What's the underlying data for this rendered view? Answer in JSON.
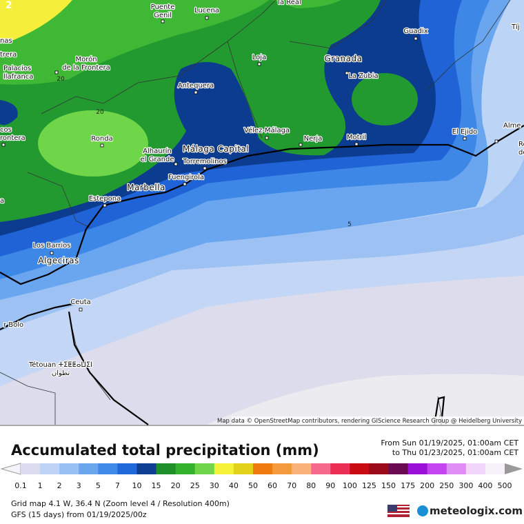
{
  "map": {
    "corner_label": "2",
    "places": [
      {
        "lines": [
          "la Real"
        ]
      },
      {
        "lines": [
          "Puente",
          "Genil"
        ]
      },
      {
        "lines": [
          "Lucena"
        ]
      },
      {
        "lines": [
          "nas"
        ]
      },
      {
        "lines": [
          "trera"
        ]
      },
      {
        "lines": [
          "Morón",
          "de la Frontera"
        ]
      },
      {
        "lines": [
          "Palacios",
          "llafranca"
        ]
      },
      {
        "lines": [
          "Loja"
        ]
      },
      {
        "lines": [
          "Granada"
        ]
      },
      {
        "lines": [
          "La Zubia"
        ]
      },
      {
        "lines": [
          "Guadix"
        ]
      },
      {
        "lines": [
          "Tíj"
        ]
      },
      {
        "lines": [
          "Antequera"
        ]
      },
      {
        "lines": [
          "cos",
          "rontera"
        ]
      },
      {
        "lines": [
          "Ronda"
        ]
      },
      {
        "lines": [
          "Vélez-Málaga"
        ]
      },
      {
        "lines": [
          "Nerja"
        ]
      },
      {
        "lines": [
          "Motril"
        ]
      },
      {
        "lines": [
          "El Ejido"
        ]
      },
      {
        "lines": [
          "Alme"
        ]
      },
      {
        "lines": [
          "Roque",
          "de Ma"
        ]
      },
      {
        "lines": [
          "Málaga Capital"
        ]
      },
      {
        "lines": [
          "Alhaurín",
          "el Grande"
        ]
      },
      {
        "lines": [
          "Torremolinos"
        ]
      },
      {
        "lines": [
          "Fuengirola"
        ]
      },
      {
        "lines": [
          "Marbella"
        ]
      },
      {
        "lines": [
          "Estepona"
        ]
      },
      {
        "lines": [
          "a"
        ]
      },
      {
        "lines": [
          "Los Barrios"
        ]
      },
      {
        "lines": [
          "Algeciras"
        ]
      },
      {
        "lines": [
          "Ceuta"
        ]
      },
      {
        "lines": [
          "r Bolo"
        ]
      },
      {
        "lines": [
          "Tétouan ⵜⵉⵟⵟⴰⵡⵉⵏ",
          "تطوان"
        ]
      }
    ],
    "contour_labels": [
      "20",
      "20",
      "5"
    ],
    "attribution": "Map data © OpenStreetMap contributors, rendering GIScience Research Group @ Heidelberg University"
  },
  "legend": {
    "title": "Accumulated total precipitation (mm)",
    "from": "From Sun 01/19/2025, 01:00am CET",
    "to": "to Thu 01/23/2025, 01:00am CET",
    "ticks": [
      0.1,
      1,
      2,
      3,
      5,
      7,
      10,
      15,
      20,
      25,
      30,
      40,
      50,
      60,
      70,
      80,
      90,
      100,
      125,
      150,
      175,
      200,
      250,
      300,
      400,
      500
    ],
    "colors": [
      "#dcdcf0",
      "#bed4f7",
      "#98c0f4",
      "#6aa5ee",
      "#3f89e8",
      "#1f6adb",
      "#0e3f91",
      "#1f8f2a",
      "#34b22d",
      "#6fd64a",
      "#f5f23a",
      "#e3d21a",
      "#f07a10",
      "#f39a3c",
      "#f8b27a",
      "#f56a8c",
      "#ec2f55",
      "#c80b12",
      "#9a0a18",
      "#6a0a50",
      "#9a10d8",
      "#c444f0",
      "#e08cf5",
      "#f2d6fa",
      "#f6f0f8"
    ],
    "below_color": "#f4f4fa",
    "above_color": "#9a9a9a"
  },
  "footer": {
    "grid": "Grid map 4.1 W, 36.4 N (Zoom level 4 / Resolution 400m)",
    "model": "GFS (15 days) from  01/19/2025/00z",
    "brand": "meteologix.com"
  }
}
